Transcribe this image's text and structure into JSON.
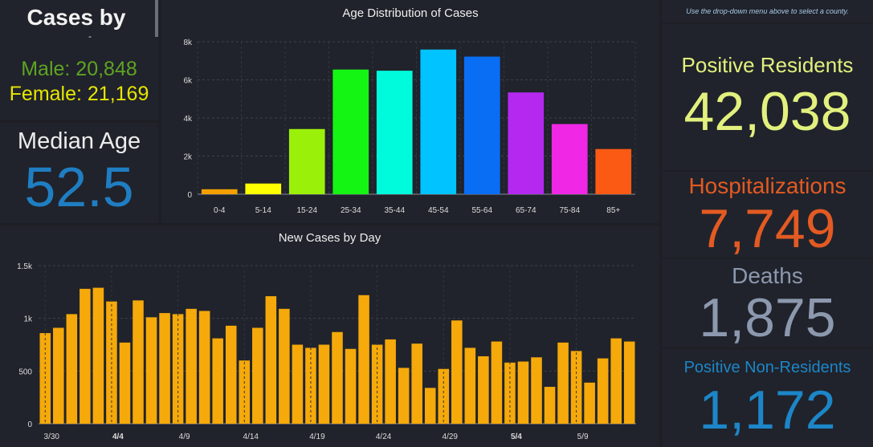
{
  "gender": {
    "title": "Cases by",
    "subtitle_fragment": "-",
    "male": "Male: 20,848",
    "female": "Female: 21,169"
  },
  "median": {
    "label": "Median Age",
    "value": "52.5"
  },
  "note": "Use the drop-down menu above to select a county.",
  "stats": {
    "positive_label": "Positive Residents",
    "positive_value": "42,038",
    "hosp_label": "Hospitalizations",
    "hosp_value": "7,749",
    "deaths_label": "Deaths",
    "deaths_value": "1,875",
    "nonres_label": "Positive Non-Residents",
    "nonres_value": "1,172"
  },
  "colors": {
    "background": "#1e1f24",
    "panel": "#20232b",
    "daily_bar": "#f5a90a",
    "male": "#5fa323",
    "female": "#e6e600",
    "median": "#1f7ec2",
    "positive": "#e2f07e",
    "hospitalizations": "#e35a22",
    "deaths": "#8c98ae",
    "nonresidents": "#1c86c8"
  },
  "chart_data": [
    {
      "type": "bar",
      "title": "Age Distribution of Cases",
      "categories": [
        "0-4",
        "5-14",
        "15-24",
        "25-34",
        "35-44",
        "45-54",
        "55-64",
        "65-74",
        "75-84",
        "85+"
      ],
      "values": [
        260,
        560,
        3420,
        6540,
        6480,
        7590,
        7220,
        5340,
        3680,
        2370
      ],
      "bar_colors": [
        "#f5a000",
        "#ffff00",
        "#9bf00a",
        "#14f514",
        "#00fadc",
        "#00c3ff",
        "#0a6ef5",
        "#b428f0",
        "#f028e6",
        "#fa5a14"
      ],
      "ylim": [
        0,
        8000
      ],
      "yticks": [
        0,
        2000,
        4000,
        6000,
        8000
      ],
      "ytick_labels": [
        "0",
        "2k",
        "4k",
        "6k",
        "8k"
      ],
      "grid": true,
      "legend": "none"
    },
    {
      "type": "bar",
      "title": "New Cases by Day",
      "categories": [
        "3/30",
        "3/31",
        "4/1",
        "4/2",
        "4/3",
        "4/4",
        "4/5",
        "4/6",
        "4/7",
        "4/8",
        "4/9",
        "4/10",
        "4/11",
        "4/12",
        "4/13",
        "4/14",
        "4/15",
        "4/16",
        "4/17",
        "4/18",
        "4/19",
        "4/20",
        "4/21",
        "4/22",
        "4/23",
        "4/24",
        "4/25",
        "4/26",
        "4/27",
        "4/28",
        "4/29",
        "4/30",
        "5/1",
        "5/2",
        "5/3",
        "5/4",
        "5/5",
        "5/6",
        "5/7",
        "5/8",
        "5/9",
        "5/10",
        "5/11",
        "5/12",
        "5/13"
      ],
      "values": [
        860,
        910,
        1040,
        1280,
        1290,
        1160,
        770,
        1170,
        1010,
        1050,
        1040,
        1090,
        1070,
        810,
        930,
        600,
        910,
        1210,
        1090,
        750,
        720,
        750,
        870,
        710,
        1220,
        750,
        800,
        530,
        760,
        340,
        520,
        980,
        720,
        640,
        780,
        580,
        590,
        630,
        350,
        770,
        690,
        390,
        620,
        810,
        780
      ],
      "xtick_labels": [
        "3/30",
        "4/4",
        "4/9",
        "4/14",
        "4/19",
        "4/24",
        "4/29",
        "5/4",
        "5/9"
      ],
      "bold_ticks": [
        "4/4",
        "5/4"
      ],
      "ylim": [
        0,
        1500
      ],
      "yticks": [
        0,
        500,
        1000,
        1500
      ],
      "ytick_labels": [
        "0",
        "500",
        "1k",
        "1.5k"
      ],
      "grid": true,
      "legend": "none"
    }
  ]
}
